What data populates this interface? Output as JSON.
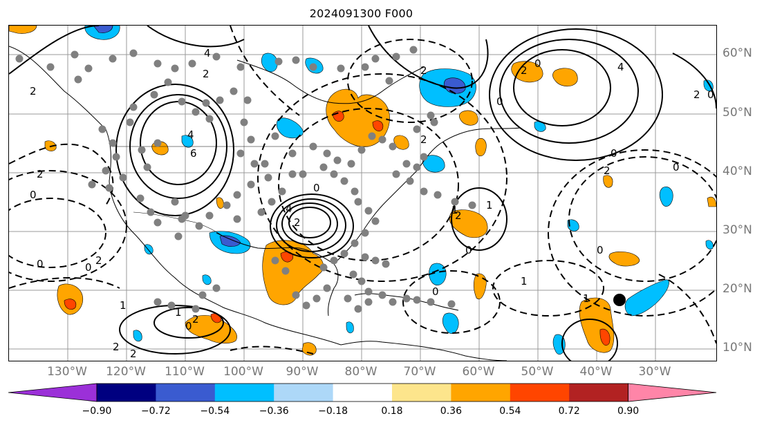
{
  "title": "2024091300 F000",
  "lat_labels": [
    "60°N",
    "50°N",
    "40°N",
    "30°N",
    "20°N",
    "10°N"
  ],
  "lon_labels": [
    "130°W",
    "120°W",
    "110°W",
    "100°W",
    "90°W",
    "80°W",
    "70°W",
    "60°W",
    "50°W",
    "40°W",
    "30°W"
  ],
  "colorbar": {
    "ticks": [
      "−0.90",
      "−0.72",
      "−0.54",
      "−0.36",
      "−0.18",
      "0.18",
      "0.36",
      "0.54",
      "0.72",
      "0.90"
    ],
    "colors": {
      "under": "#9b30d8",
      "bins": [
        "#9b30d8",
        "#000080",
        "#3a5bd0",
        "#00bfff",
        "#add8f8",
        "#ffffff",
        "#fde58c",
        "#ffa500",
        "#ff4500",
        "#b22222",
        "#ff85a8"
      ],
      "over": "#ff85a8"
    }
  },
  "contour_labels": [
    "4",
    "2",
    "0",
    "2",
    "0",
    "4",
    "6",
    "2",
    "0",
    "2",
    "0",
    "2",
    "4",
    "0",
    "2",
    "0",
    "2",
    "0",
    "4",
    "0",
    "2",
    "1",
    "1",
    "0",
    "2",
    "0",
    "2",
    "1",
    "0",
    "1",
    "0",
    "2",
    "0",
    "1",
    "0",
    "2",
    "1",
    "2",
    "0",
    "4",
    "2"
  ],
  "legend_colors": {
    "positive_contour": "#000000",
    "negative_contour": "#000000",
    "coastline": "#000000",
    "gridline": "#999999",
    "marker_gray": "#808080",
    "marker_black": "#000000"
  }
}
